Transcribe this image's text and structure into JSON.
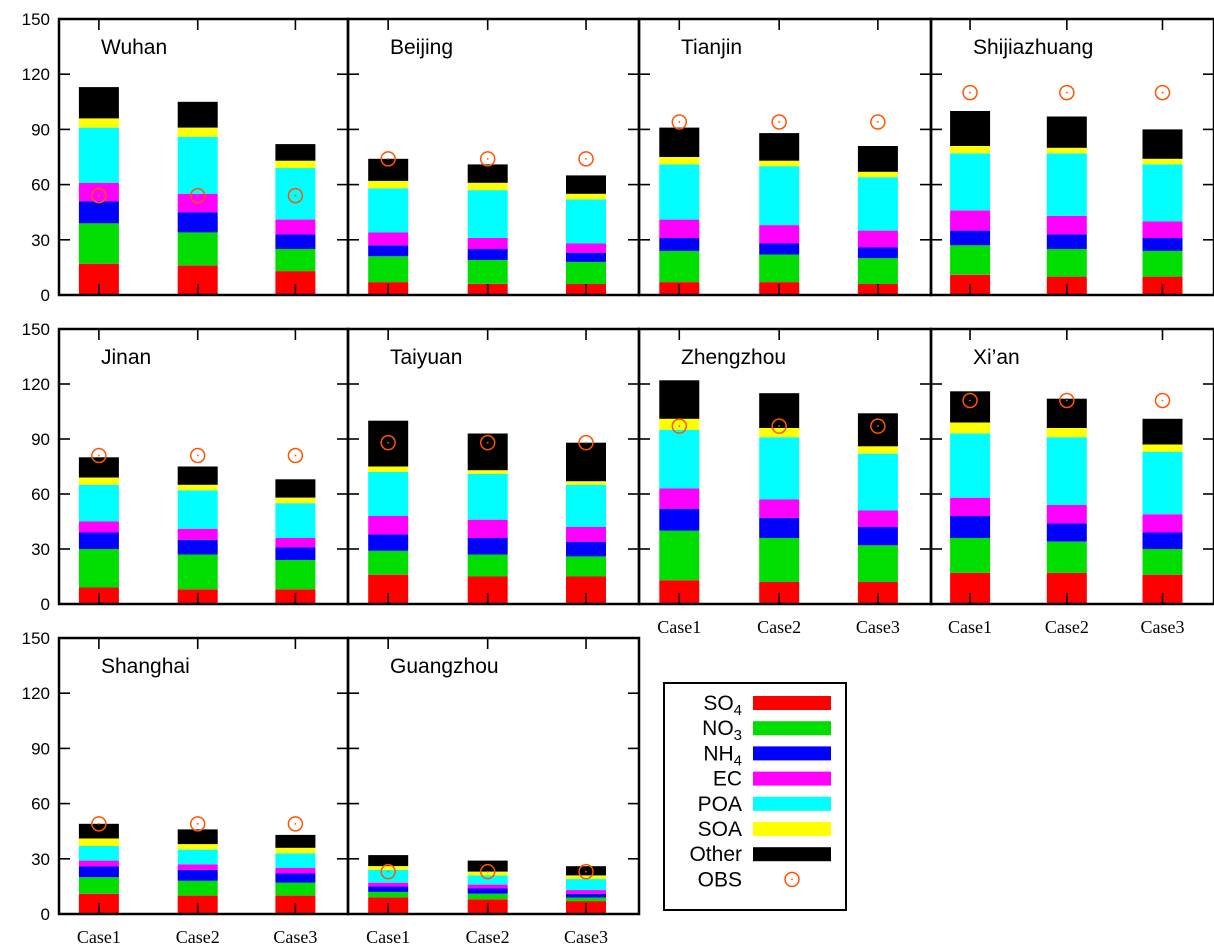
{
  "chart_data": {
    "type": "bar",
    "stacked": true,
    "ylim": [
      0,
      150
    ],
    "yticks": [
      0,
      30,
      60,
      90,
      120,
      150
    ],
    "categories": [
      "Case1",
      "Case2",
      "Case3"
    ],
    "components": [
      {
        "key": "SO4",
        "base": "SO",
        "sub": "4",
        "color": "#ff0000"
      },
      {
        "key": "NO3",
        "base": "NO",
        "sub": "3",
        "color": "#00dd00"
      },
      {
        "key": "NH4",
        "base": "NH",
        "sub": "4",
        "color": "#0000ff"
      },
      {
        "key": "EC",
        "base": "EC",
        "sub": "",
        "color": "#ff00ff"
      },
      {
        "key": "POA",
        "base": "POA",
        "sub": "",
        "color": "#00ffff"
      },
      {
        "key": "SOA",
        "base": "SOA",
        "sub": "",
        "color": "#ffff00"
      },
      {
        "key": "Other",
        "base": "Other",
        "sub": "",
        "color": "#000000"
      }
    ],
    "obs_legend": {
      "label": "OBS",
      "color": "#ff5500"
    },
    "grid": false,
    "legend_position": "bottom-right",
    "panels": [
      {
        "city": "Wuhan",
        "row": 0,
        "col": 0,
        "obs": 54,
        "cases": [
          [
            17,
            22,
            12,
            10,
            30,
            5,
            17
          ],
          [
            16,
            18,
            11,
            10,
            31,
            5,
            14
          ],
          [
            13,
            12,
            8,
            8,
            28,
            4,
            9
          ]
        ]
      },
      {
        "city": "Beijing",
        "row": 0,
        "col": 1,
        "obs": 74,
        "cases": [
          [
            7,
            14,
            6,
            7,
            24,
            4,
            12
          ],
          [
            6,
            13,
            6,
            6,
            26,
            4,
            10
          ],
          [
            6,
            12,
            5,
            5,
            24,
            3,
            10
          ]
        ]
      },
      {
        "city": "Tianjin",
        "row": 0,
        "col": 2,
        "obs": 94,
        "cases": [
          [
            7,
            17,
            7,
            10,
            30,
            4,
            16
          ],
          [
            7,
            15,
            6,
            10,
            32,
            3,
            15
          ],
          [
            6,
            14,
            6,
            9,
            29,
            3,
            14
          ]
        ]
      },
      {
        "city": "Shijiazhuang",
        "row": 0,
        "col": 3,
        "obs": 110,
        "cases": [
          [
            11,
            16,
            8,
            11,
            31,
            4,
            19
          ],
          [
            10,
            15,
            8,
            10,
            34,
            3,
            17
          ],
          [
            10,
            14,
            7,
            9,
            31,
            3,
            16
          ]
        ]
      },
      {
        "city": "Jinan",
        "row": 1,
        "col": 0,
        "obs": 81,
        "cases": [
          [
            9,
            21,
            9,
            6,
            20,
            4,
            11
          ],
          [
            8,
            19,
            8,
            6,
            21,
            3,
            10
          ],
          [
            8,
            16,
            7,
            5,
            19,
            3,
            10
          ]
        ]
      },
      {
        "city": "Taiyuan",
        "row": 1,
        "col": 1,
        "obs": 88,
        "cases": [
          [
            16,
            13,
            9,
            10,
            24,
            3,
            25
          ],
          [
            15,
            12,
            9,
            10,
            25,
            2,
            20
          ],
          [
            15,
            11,
            8,
            8,
            23,
            2,
            21
          ]
        ]
      },
      {
        "city": "Zhengzhou",
        "row": 1,
        "col": 2,
        "obs": 97,
        "cases": [
          [
            13,
            27,
            12,
            11,
            32,
            6,
            21
          ],
          [
            12,
            24,
            11,
            10,
            34,
            5,
            19
          ],
          [
            12,
            20,
            10,
            9,
            31,
            4,
            18
          ]
        ]
      },
      {
        "city": "Xi’an",
        "row": 1,
        "col": 3,
        "obs": 111,
        "cases": [
          [
            17,
            19,
            12,
            10,
            35,
            6,
            17
          ],
          [
            17,
            17,
            10,
            10,
            37,
            5,
            16
          ],
          [
            16,
            14,
            9,
            10,
            34,
            4,
            14
          ]
        ]
      },
      {
        "city": "Shanghai",
        "row": 2,
        "col": 0,
        "obs": 49,
        "cases": [
          [
            11,
            9,
            6,
            3,
            8,
            4,
            8
          ],
          [
            10,
            8,
            6,
            3,
            8,
            3,
            8
          ],
          [
            10,
            7,
            5,
            3,
            8,
            3,
            7
          ]
        ]
      },
      {
        "city": "Guangzhou",
        "row": 2,
        "col": 1,
        "obs": 23,
        "cases": [
          [
            9,
            3,
            3,
            2,
            7,
            2,
            6
          ],
          [
            8,
            3,
            3,
            2,
            5,
            2,
            6
          ],
          [
            7,
            2,
            2,
            2,
            6,
            2,
            5
          ]
        ]
      }
    ]
  }
}
